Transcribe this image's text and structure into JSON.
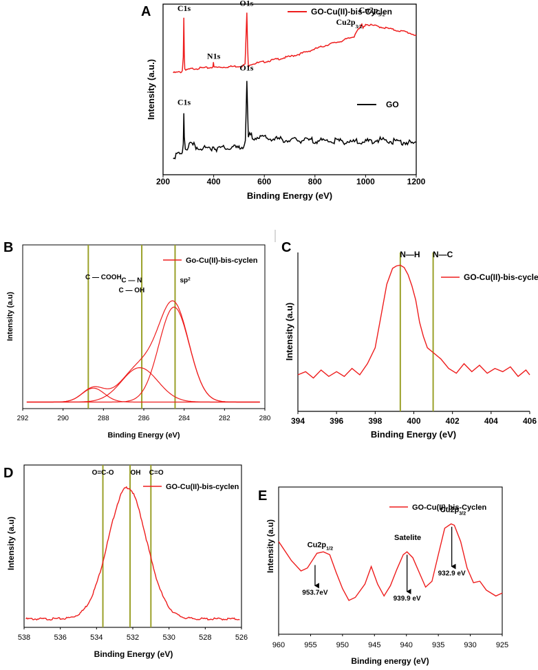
{
  "colors": {
    "red": "#ee1c1c",
    "black": "#000000",
    "olive": "#9aa028",
    "axis": "#000000"
  },
  "chart_data": [
    {
      "type": "line",
      "panel": "A",
      "title": "",
      "xlabel": "Binding Energy (eV)",
      "ylabel": "Intensity (a.u.)",
      "xlim": [
        200,
        1200
      ],
      "ylim": [
        0,
        100
      ],
      "xticks": [
        200,
        400,
        600,
        800,
        1000,
        1200
      ],
      "legend": [
        "GO-Cu(II)-bis-Cyclen",
        "GO"
      ],
      "series": [
        {
          "name": "GO-Cu(II)-bis-Cyclen",
          "color": "#ee1c1c",
          "x": [
            240,
            270,
            276,
            280,
            282,
            284,
            286,
            290,
            300,
            320,
            350,
            380,
            397,
            399,
            401,
            405,
            440,
            480,
            510,
            524,
            528,
            531,
            534,
            537,
            542,
            560,
            600,
            650,
            700,
            750,
            800,
            850,
            900,
            940,
            955,
            962,
            968,
            975,
            985,
            990,
            1000,
            1010,
            1040,
            1080,
            1120,
            1160,
            1200
          ],
          "y": [
            60,
            60.5,
            61,
            69,
            92,
            70,
            62,
            61.3,
            62,
            62.5,
            62.8,
            63,
            63.3,
            66,
            63.3,
            63.2,
            63.4,
            63.8,
            64,
            65,
            82,
            95,
            75,
            63,
            65,
            65.5,
            66.5,
            68,
            69.5,
            71.5,
            74,
            76.5,
            78.5,
            80.5,
            81.5,
            84,
            85,
            85.5,
            88.5,
            86,
            88.7,
            88.2,
            87.5,
            86.3,
            85,
            84,
            82
          ]
        },
        {
          "name": "GO",
          "color": "#000000",
          "x": [
            240,
            270,
            276,
            280,
            282,
            284,
            288,
            292,
            300,
            310,
            330,
            360,
            400,
            450,
            500,
            515,
            525,
            528,
            531,
            534,
            537,
            542,
            560,
            600,
            700,
            800,
            900,
            1000,
            1050,
            1100,
            1150,
            1200
          ],
          "y": [
            12,
            12.5,
            13,
            18,
            36,
            22,
            15,
            15.5,
            18.5,
            19,
            17.5,
            16.5,
            16.2,
            16.5,
            16.8,
            17.5,
            20,
            36,
            55,
            38,
            22,
            24,
            23,
            22.5,
            21,
            21,
            20.5,
            20,
            21.5,
            20.5,
            20,
            19
          ]
        }
      ],
      "annotations": [
        {
          "text": "C1s",
          "x": 283,
          "y": 96
        },
        {
          "text": "N1s",
          "x": 400,
          "y": 68
        },
        {
          "text": "O1s",
          "x": 530,
          "y": 99
        },
        {
          "text": "Cu2p",
          "sub": "3/2",
          "x": 935,
          "y": 88
        },
        {
          "text": "Cu2p",
          "sub": "3/2",
          "x": 1025,
          "y": 95
        },
        {
          "text": "C1s",
          "x": 283,
          "y": 41
        },
        {
          "text": "O1s",
          "x": 530,
          "y": 61
        }
      ]
    },
    {
      "type": "line",
      "panel": "B",
      "xlabel": "Binding Energy (eV)",
      "ylabel": "Intensity (a.u)",
      "xlim": [
        292,
        280
      ],
      "ylim": [
        0,
        100
      ],
      "xticks": [
        292,
        290,
        288,
        286,
        284,
        282,
        280
      ],
      "legend": [
        "Go-Cu(II)-bis-cyclen"
      ],
      "baseline": 4,
      "peaks": [
        {
          "center": 284.5,
          "height": 58,
          "sigma": 0.75
        },
        {
          "center": 286.2,
          "height": 21,
          "sigma": 0.9
        },
        {
          "center": 288.5,
          "height": 8.5,
          "sigma": 0.55
        }
      ],
      "vlines": [
        288.75,
        286.1,
        284.45
      ],
      "annotations": [
        {
          "text": "C — COOH",
          "x": 288.0,
          "y": 79
        },
        {
          "text": "C — N",
          "x": 286.6,
          "y": 77
        },
        {
          "text": "C — OH",
          "x": 286.6,
          "y": 71
        },
        {
          "text": "sp",
          "sup": "2",
          "x": 283.95,
          "y": 77
        }
      ]
    },
    {
      "type": "line",
      "panel": "C",
      "xlabel": "Binding Energy (eV)",
      "ylabel": "Intensity (a.u)",
      "xlim": [
        394,
        406
      ],
      "ylim": [
        0,
        100
      ],
      "xticks": [
        394,
        396,
        398,
        400,
        402,
        404,
        406
      ],
      "legend": [
        "GO-Cu(II)-bis-cyclen"
      ],
      "series": [
        {
          "name": "GO-Cu(II)-bis-cyclen",
          "x": [
            394,
            394.4,
            394.8,
            395.2,
            395.6,
            396,
            396.4,
            396.8,
            397.2,
            397.6,
            398,
            398.3,
            398.6,
            398.9,
            399.1,
            399.3,
            399.5,
            399.7,
            399.9,
            400.1,
            400.3,
            400.5,
            400.7,
            401,
            401.4,
            401.8,
            402.2,
            402.6,
            403,
            403.4,
            403.8,
            404.2,
            404.6,
            405,
            405.4,
            405.8,
            406
          ],
          "y": [
            23,
            25,
            21,
            26,
            22,
            25,
            22,
            27,
            23,
            30,
            40,
            60,
            80,
            90,
            91.5,
            92,
            90.5,
            86,
            79,
            70,
            56,
            47,
            40,
            37,
            33,
            27,
            24,
            30,
            25,
            29,
            24,
            27,
            25,
            28,
            22,
            26,
            23
          ]
        }
      ],
      "vlines": [
        399.3,
        401.0
      ],
      "annotations": [
        {
          "text": "N—H",
          "x": 399.8,
          "y": 97
        },
        {
          "text": "N—C",
          "x": 401.5,
          "y": 97
        }
      ]
    },
    {
      "type": "line",
      "panel": "D",
      "xlabel": "Binding Energy (eV)",
      "ylabel": "Intensity (a.u)",
      "xlim": [
        538,
        526
      ],
      "ylim": [
        0,
        100
      ],
      "xticks": [
        538,
        536,
        534,
        532,
        530,
        528,
        526
      ],
      "legend": [
        "GO-Cu(II)-bis-cyclen"
      ],
      "baseline": 5.5,
      "peak": {
        "center": 532.3,
        "height": 81,
        "sigma": 1.05
      },
      "vlines": [
        533.65,
        532.15,
        531.0
      ],
      "annotations": [
        {
          "text": "O=C-O",
          "x": 533.65,
          "y": 94
        },
        {
          "text": "OH",
          "x": 531.85,
          "y": 94
        },
        {
          "text": "C=O",
          "x": 530.7,
          "y": 94
        }
      ]
    },
    {
      "type": "line",
      "panel": "E",
      "xlabel": "Binding energy (eV)",
      "ylabel": "Intensity (a.u)",
      "xlim": [
        960,
        925
      ],
      "ylim": [
        0,
        100
      ],
      "xticks": [
        960,
        955,
        950,
        945,
        940,
        935,
        930,
        925
      ],
      "legend": [
        "GO-Cu(II)-bis-Cyclen"
      ],
      "series": [
        {
          "name": "GO-Cu(II)-bis-Cyclen",
          "x": [
            960,
            958,
            956.5,
            955.5,
            954,
            953,
            952,
            951,
            950,
            949,
            948,
            946.5,
            945.5,
            944.5,
            943.5,
            942.5,
            941.5,
            940.5,
            939.9,
            939,
            938,
            937,
            936,
            935,
            934,
            933,
            932.5,
            931.5,
            930.5,
            929.5,
            928.5,
            927.5,
            926,
            925
          ],
          "y": [
            63,
            50,
            43,
            45,
            55,
            56,
            54,
            42,
            31,
            23,
            25,
            34,
            46,
            34,
            26,
            33,
            44,
            54,
            56,
            52,
            42,
            32,
            36,
            54,
            72,
            75,
            74,
            63,
            45,
            35,
            36,
            30,
            26,
            28
          ]
        }
      ],
      "arrows": [
        {
          "label": "953.7eV",
          "x": 954.3,
          "from": 47,
          "to": 33
        },
        {
          "label": "939.9 eV",
          "x": 939.9,
          "from": 54,
          "to": 29
        },
        {
          "label": "932.9 eV",
          "x": 932.9,
          "from": 73,
          "to": 46
        }
      ],
      "annotations": [
        {
          "text": "Cu2p",
          "sub": "1/2",
          "x": 953.5,
          "y": 59
        },
        {
          "text": "Satelite",
          "x": 939.8,
          "y": 64
        },
        {
          "text": "Cu2p",
          "sub": "3/2",
          "x": 932.7,
          "y": 83
        }
      ]
    }
  ]
}
